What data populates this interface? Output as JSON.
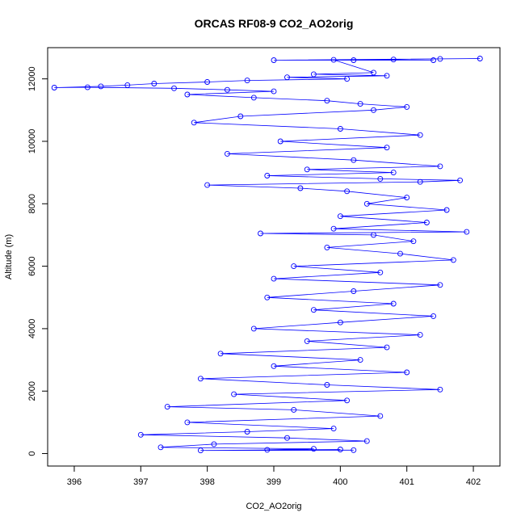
{
  "chart_data": {
    "type": "scatter",
    "title": "ORCAS RF08-9 CO2_AO2orig",
    "xlabel": "CO2_AO2orig",
    "ylabel": "Altitude (m)",
    "xlim": [
      395.6,
      402.4
    ],
    "ylim": [
      -400,
      13000
    ],
    "xticks": [
      "396",
      "397",
      "398",
      "399",
      "400",
      "401",
      "402"
    ],
    "yticks": [
      "0",
      "2000",
      "4000",
      "6000",
      "8000",
      "10000",
      "12000"
    ],
    "grid": false,
    "legend": "none",
    "series_color": "#0000ff",
    "series": [
      {
        "style": "points and connecting lines (open circles)",
        "points": [
          [
            401.4,
            12600
          ],
          [
            400.2,
            12600
          ],
          [
            399.0,
            12600
          ],
          [
            402.1,
            12650
          ],
          [
            401.5,
            12640
          ],
          [
            400.8,
            12620
          ],
          [
            399.9,
            12610
          ],
          [
            400.5,
            12200
          ],
          [
            399.6,
            12150
          ],
          [
            400.7,
            12100
          ],
          [
            399.2,
            12050
          ],
          [
            400.1,
            12000
          ],
          [
            398.6,
            11950
          ],
          [
            398.0,
            11900
          ],
          [
            397.2,
            11850
          ],
          [
            396.8,
            11800
          ],
          [
            396.4,
            11760
          ],
          [
            395.7,
            11720
          ],
          [
            396.2,
            11730
          ],
          [
            397.5,
            11700
          ],
          [
            398.3,
            11650
          ],
          [
            399.0,
            11600
          ],
          [
            397.7,
            11500
          ],
          [
            398.7,
            11400
          ],
          [
            399.8,
            11300
          ],
          [
            400.3,
            11200
          ],
          [
            401.0,
            11100
          ],
          [
            400.5,
            11000
          ],
          [
            398.5,
            10800
          ],
          [
            397.8,
            10600
          ],
          [
            400.0,
            10400
          ],
          [
            401.2,
            10200
          ],
          [
            399.1,
            10000
          ],
          [
            400.7,
            9800
          ],
          [
            398.3,
            9600
          ],
          [
            400.2,
            9400
          ],
          [
            401.5,
            9200
          ],
          [
            399.5,
            9100
          ],
          [
            400.8,
            9000
          ],
          [
            398.9,
            8900
          ],
          [
            400.6,
            8800
          ],
          [
            401.8,
            8750
          ],
          [
            401.2,
            8700
          ],
          [
            398.0,
            8600
          ],
          [
            399.4,
            8500
          ],
          [
            400.1,
            8400
          ],
          [
            401.0,
            8200
          ],
          [
            400.4,
            8000
          ],
          [
            401.6,
            7800
          ],
          [
            400.0,
            7600
          ],
          [
            401.3,
            7400
          ],
          [
            399.9,
            7200
          ],
          [
            401.9,
            7100
          ],
          [
            398.8,
            7050
          ],
          [
            400.5,
            7000
          ],
          [
            401.1,
            6800
          ],
          [
            399.8,
            6600
          ],
          [
            400.9,
            6400
          ],
          [
            401.7,
            6200
          ],
          [
            399.3,
            6000
          ],
          [
            400.6,
            5800
          ],
          [
            399.0,
            5600
          ],
          [
            401.5,
            5400
          ],
          [
            400.2,
            5200
          ],
          [
            398.9,
            5000
          ],
          [
            400.8,
            4800
          ],
          [
            399.6,
            4600
          ],
          [
            401.4,
            4400
          ],
          [
            400.0,
            4200
          ],
          [
            398.7,
            4000
          ],
          [
            401.2,
            3800
          ],
          [
            399.5,
            3600
          ],
          [
            400.7,
            3400
          ],
          [
            398.2,
            3200
          ],
          [
            400.3,
            3000
          ],
          [
            399.0,
            2800
          ],
          [
            401.0,
            2600
          ],
          [
            397.9,
            2400
          ],
          [
            399.8,
            2200
          ],
          [
            401.5,
            2050
          ],
          [
            398.4,
            1900
          ],
          [
            400.1,
            1700
          ],
          [
            397.4,
            1500
          ],
          [
            399.3,
            1400
          ],
          [
            400.6,
            1200
          ],
          [
            397.7,
            1000
          ],
          [
            399.9,
            800
          ],
          [
            398.6,
            700
          ],
          [
            397.0,
            600
          ],
          [
            399.2,
            500
          ],
          [
            400.4,
            400
          ],
          [
            398.1,
            300
          ],
          [
            397.3,
            200
          ],
          [
            399.6,
            150
          ],
          [
            398.9,
            120
          ],
          [
            400.2,
            110
          ],
          [
            397.9,
            100
          ],
          [
            400.0,
            130
          ]
        ]
      }
    ]
  }
}
